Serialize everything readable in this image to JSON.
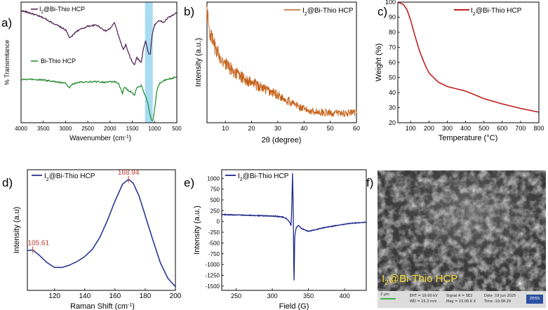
{
  "colors": {
    "ftir_iodine": "#4b1d4f",
    "ftir_base": "#1e8a2a",
    "xrd": "#c5621a",
    "tga": "#c21f1f",
    "raman": "#2b3891",
    "epr": "#1d2a8a",
    "highlight": "#a8dcf2",
    "raman_labels": "#c0392b",
    "sem_caption": "#f2d83a"
  },
  "chart_data": [
    {
      "panel": "a)",
      "type": "line",
      "xlabel": "Wavenumber (cm",
      "xlabel_sup": "-1",
      "xlabel_close": ")",
      "ylabel": "% Transmitance",
      "xlim": [
        4000,
        500
      ],
      "xticks": [
        "4000",
        "3500",
        "3000",
        "2500",
        "2000",
        "1500",
        "1000",
        "500"
      ],
      "highlight_band": [
        1215,
        1040
      ],
      "series": [
        {
          "name_main": "I",
          "name_sub": "2",
          "name_rest": "@Bi-Thio HCP",
          "x": [
            4000,
            3800,
            3500,
            3250,
            3000,
            2900,
            2750,
            2500,
            2300,
            2100,
            2000,
            1900,
            1800,
            1700,
            1650,
            1600,
            1500,
            1450,
            1400,
            1300,
            1250,
            1200,
            1150,
            1100,
            1050,
            1000,
            900,
            800,
            700,
            600,
            500
          ],
          "y": [
            9.3,
            9.1,
            8.7,
            8.2,
            7.7,
            7.0,
            7.6,
            8.0,
            8.1,
            7.6,
            7.8,
            8.3,
            7.1,
            6.0,
            6.5,
            5.9,
            5.0,
            4.8,
            5.4,
            5.0,
            6.2,
            6.8,
            5.9,
            5.6,
            7.4,
            8.1,
            8.5,
            8.3,
            8.7,
            8.9,
            9.1
          ]
        },
        {
          "name_main": "Bi-Thio HCP",
          "name_sub": "",
          "name_rest": "",
          "x": [
            4000,
            3800,
            3500,
            3250,
            3000,
            2920,
            2850,
            2700,
            2500,
            2300,
            2100,
            2000,
            1900,
            1800,
            1720,
            1680,
            1600,
            1500,
            1450,
            1400,
            1300,
            1250,
            1200,
            1150,
            1100,
            1070,
            1040,
            1000,
            950,
            900,
            800,
            700,
            600,
            500
          ],
          "y": [
            3.6,
            3.6,
            3.55,
            3.4,
            3.3,
            2.9,
            3.2,
            3.35,
            3.4,
            3.4,
            3.35,
            3.4,
            3.4,
            3.2,
            2.4,
            3.0,
            2.7,
            2.5,
            2.3,
            2.9,
            3.1,
            2.6,
            2.2,
            1.6,
            0.6,
            0.25,
            0.1,
            1.1,
            2.6,
            3.2,
            3.5,
            3.6,
            3.7,
            3.8
          ]
        }
      ]
    },
    {
      "panel": "b)",
      "type": "line",
      "xlabel": "2θ (degree)",
      "ylabel": "Intensity (a.u.)",
      "xlim": [
        3,
        60
      ],
      "ylim": [
        0,
        100
      ],
      "xticks": [
        "10",
        "20",
        "30",
        "40",
        "50",
        "60"
      ],
      "series": [
        {
          "name_main": "I",
          "name_sub": "2",
          "name_rest": "@Bi-Thio HCP",
          "x": [
            3,
            4,
            5,
            7,
            10,
            13,
            16,
            20,
            25,
            30,
            35,
            40,
            45,
            50,
            55,
            60
          ],
          "y": [
            92,
            76,
            68,
            58,
            49,
            43,
            38,
            33,
            28,
            23,
            17,
            11,
            9,
            8,
            8,
            8
          ]
        }
      ]
    },
    {
      "panel": "c)",
      "type": "line",
      "xlabel": "Temperature (",
      "xlabel_deg": "°C",
      "xlabel_close": ")",
      "ylabel": "Weight (%)",
      "xlim": [
        30,
        800
      ],
      "ylim": [
        20,
        100
      ],
      "xticks": [
        "100",
        "200",
        "300",
        "400",
        "500",
        "600",
        "700",
        "800"
      ],
      "yticks": [
        "20",
        "30",
        "40",
        "50",
        "60",
        "70",
        "80",
        "90",
        "100"
      ],
      "series": [
        {
          "name_main": "I",
          "name_sub": "2",
          "name_rest": "@Bi-Thio HCP",
          "x": [
            30,
            60,
            80,
            100,
            120,
            150,
            180,
            200,
            250,
            300,
            350,
            400,
            450,
            500,
            600,
            700,
            800
          ],
          "y": [
            100,
            98.5,
            95,
            88,
            79,
            67,
            58,
            53,
            47,
            44,
            42.5,
            41,
            38.5,
            36,
            32.5,
            29.5,
            27
          ]
        }
      ]
    },
    {
      "panel": "d)",
      "type": "line",
      "xlabel": "Raman Shift (cm",
      "xlabel_sup": "-1",
      "xlabel_close": ")",
      "ylabel": "Intensity (a.u)",
      "xlim": [
        102,
        200
      ],
      "ylim": [
        0,
        100
      ],
      "xticks": [
        "120",
        "140",
        "160",
        "180",
        "200"
      ],
      "peak_labels": [
        "105.61",
        "168.94"
      ],
      "peak_x": [
        105.61,
        168.94
      ],
      "series": [
        {
          "name_main": "I",
          "name_sub": "2",
          "name_rest": "@Bi-Thio HCP",
          "x": [
            102,
            105.61,
            110,
            115,
            120,
            125,
            130,
            135,
            140,
            145,
            150,
            155,
            160,
            165,
            168.94,
            172,
            176,
            180,
            185,
            190,
            195,
            200
          ],
          "y": [
            33,
            33.5,
            29,
            23,
            19,
            19,
            21,
            24,
            28,
            34,
            44,
            58,
            74,
            88,
            92,
            89,
            78,
            62,
            42,
            23,
            10,
            3
          ]
        }
      ]
    },
    {
      "panel": "e)",
      "type": "line",
      "xlabel": "Field (G)",
      "ylabel": "Intensity (a.u.)",
      "xlim": [
        230,
        430
      ],
      "ylim": [
        -1600,
        1200
      ],
      "xticks": [
        "250",
        "300",
        "350",
        "400"
      ],
      "yticks": [
        "-1500",
        "-1250",
        "-1000",
        "-750",
        "-500",
        "-250",
        "0",
        "250",
        "500",
        "750",
        "1000"
      ],
      "series": [
        {
          "name_main": "I",
          "name_sub": "2",
          "name_rest": "@Bi-Thio HCP",
          "x": [
            230,
            250,
            270,
            290,
            305,
            315,
            320,
            324,
            326,
            327,
            328,
            329,
            330,
            331,
            333,
            336,
            340,
            350,
            370,
            390,
            410,
            430
          ],
          "y": [
            160,
            150,
            140,
            130,
            120,
            100,
            60,
            -20,
            -100,
            400,
            1120,
            200,
            -1480,
            -350,
            -150,
            -90,
            -160,
            -230,
            -150,
            -90,
            -40,
            -20
          ]
        }
      ]
    }
  ],
  "sem": {
    "panel": "f)",
    "caption_main": "I",
    "caption_sub": "2",
    "caption_rest": "@Bi-Thio HCP",
    "scale": "2 μm",
    "eht": "EHT = 10.00 kV",
    "wd": "WD = 15.3 mm",
    "signal": "Signal A = SE2",
    "mag": "Mag = 15.00 K X",
    "date": "Date :19 Jun 2025",
    "time": "Time :10:38:29",
    "brand": "ZEISS"
  }
}
